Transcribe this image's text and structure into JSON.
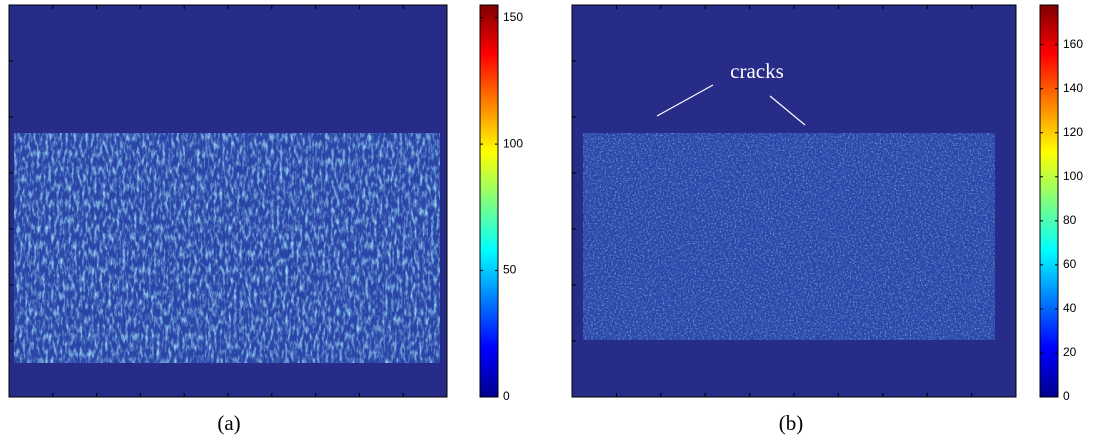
{
  "chart_data": [
    {
      "type": "heatmap",
      "caption": "(a)",
      "colormap": "jet",
      "ylim": [
        0,
        155
      ],
      "yticks": [
        0,
        50,
        100,
        150
      ]
    },
    {
      "type": "heatmap",
      "caption": "(b)",
      "annotation": "cracks",
      "colormap": "jet",
      "ylim": [
        0,
        178
      ],
      "yticks": [
        0,
        20,
        40,
        60,
        80,
        100,
        120,
        140,
        160
      ]
    }
  ]
}
